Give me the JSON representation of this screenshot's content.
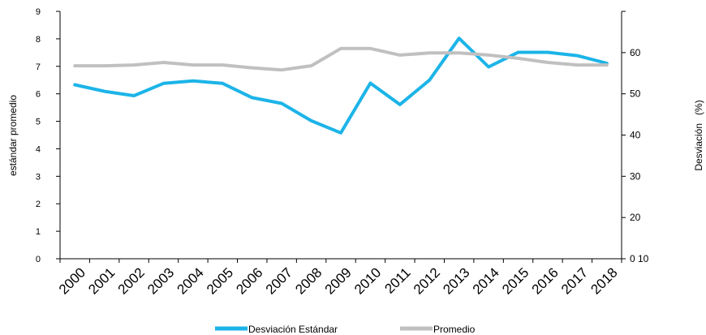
{
  "chart_data": {
    "type": "line",
    "title": "",
    "categories": [
      "2000",
      "2001",
      "2002",
      "2003",
      "2004",
      "2005",
      "2006",
      "2007",
      "2008",
      "2009",
      "2010",
      "2011",
      "2012",
      "2013",
      "2014",
      "2015",
      "2016",
      "2017",
      "2018"
    ],
    "left_axis": {
      "label": "estándar promedio",
      "ylim": [
        0,
        9
      ],
      "ticks": [
        "0",
        "1",
        "2",
        "3",
        "4",
        "5",
        "6",
        "7",
        "8",
        "9"
      ]
    },
    "right_axis": {
      "label": "Desviación   (%)",
      "ylim": [
        10,
        70
      ],
      "ticks": [
        "0 10",
        "20",
        "30",
        "40",
        "50",
        "60"
      ],
      "tick_values": [
        10,
        20,
        30,
        40,
        50,
        60
      ]
    },
    "series": [
      {
        "name": "Desviación Estándar",
        "axis": "left",
        "color": "#1cb4e8",
        "values": [
          6.33,
          6.09,
          5.93,
          6.38,
          6.47,
          6.38,
          5.86,
          5.65,
          5.02,
          4.58,
          6.39,
          5.61,
          6.5,
          8.02,
          6.98,
          7.51,
          7.51,
          7.39,
          7.11
        ]
      },
      {
        "name": "Promedio",
        "axis": "right",
        "color": "#c0c0c0",
        "values": [
          56.8,
          56.8,
          57.0,
          57.6,
          57.0,
          57.0,
          56.3,
          55.8,
          56.8,
          61.0,
          61.0,
          59.4,
          59.9,
          59.9,
          59.4,
          58.6,
          57.6,
          57.0,
          57.0
        ]
      }
    ],
    "grid": false,
    "legend_position": "bottom"
  }
}
